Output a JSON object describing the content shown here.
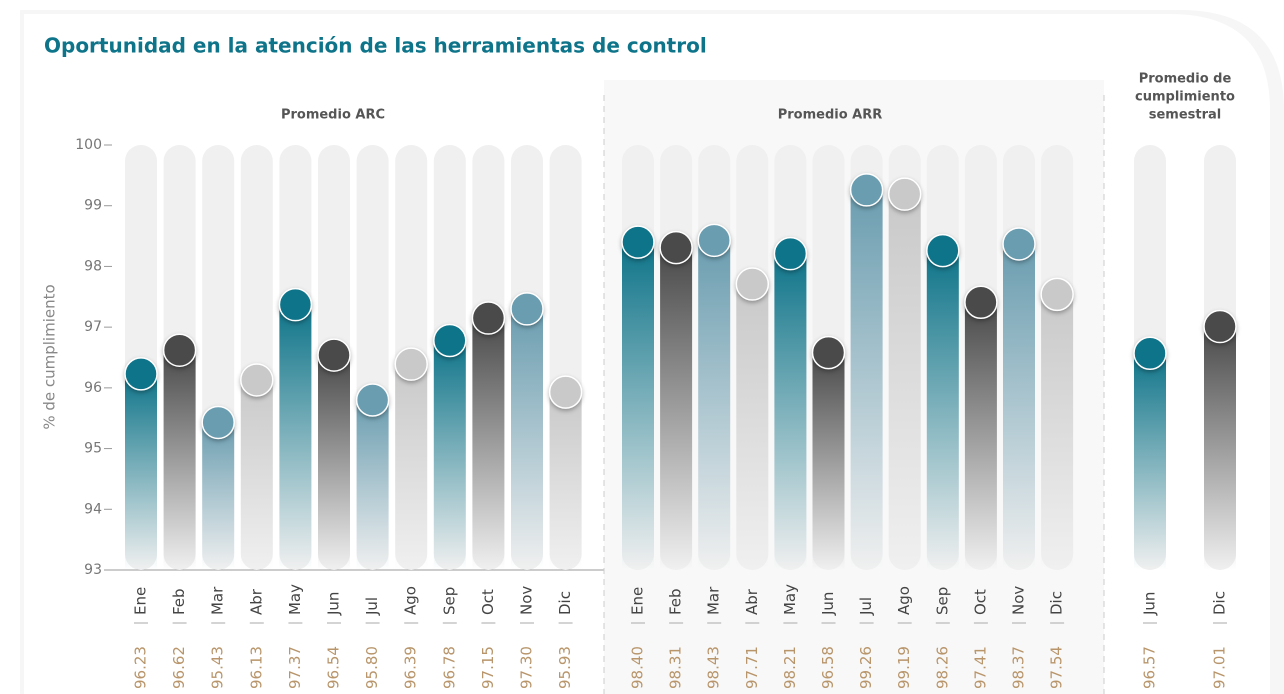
{
  "chart_data": {
    "type": "bar",
    "title": "Oportunidad en la atención de las herramientas de control",
    "y_label": "% de cumplimiento",
    "ylim": [
      93,
      100
    ],
    "yticks": [
      93,
      94,
      95,
      96,
      97,
      98,
      99,
      100
    ],
    "colors": [
      "#0e7489",
      "#4a4a4a",
      "#6a9db0",
      "#c9c9c9"
    ],
    "groups": [
      {
        "name": [
          "Promedio ARC"
        ],
        "categories": [
          "Ene",
          "Feb",
          "Mar",
          "Abr",
          "May",
          "Jun",
          "Jul",
          "Ago",
          "Sep",
          "Oct",
          "Nov",
          "Dic"
        ],
        "values": [
          96.23,
          96.62,
          95.43,
          96.13,
          97.37,
          96.54,
          95.8,
          96.39,
          96.78,
          97.15,
          97.3,
          95.93
        ],
        "value_labels": [
          "96.23",
          "96.62",
          "95.43",
          "96.13",
          "97.37",
          "96.54",
          "95.80",
          "96.39",
          "96.78",
          "97.15",
          "97.30",
          "95.93"
        ]
      },
      {
        "name": [
          "Promedio ARR"
        ],
        "categories": [
          "Ene",
          "Feb",
          "Mar",
          "Abr",
          "May",
          "Jun",
          "Jul",
          "Ago",
          "Sep",
          "Oct",
          "Nov",
          "Dic"
        ],
        "values": [
          98.4,
          98.31,
          98.43,
          97.71,
          98.21,
          96.58,
          99.26,
          99.19,
          98.26,
          97.41,
          98.37,
          97.54
        ],
        "value_labels": [
          "98.40",
          "98.31",
          "98.43",
          "97.71",
          "98.21",
          "96.58",
          "99.26",
          "99.19",
          "98.26",
          "97.41",
          "98.37",
          "97.54"
        ]
      },
      {
        "name": [
          "Promedio de",
          "cumplimiento",
          "semestral"
        ],
        "categories": [
          "Jun",
          "Dic"
        ],
        "values": [
          96.57,
          97.01
        ],
        "value_labels": [
          "96.57",
          "97.01"
        ]
      }
    ]
  }
}
